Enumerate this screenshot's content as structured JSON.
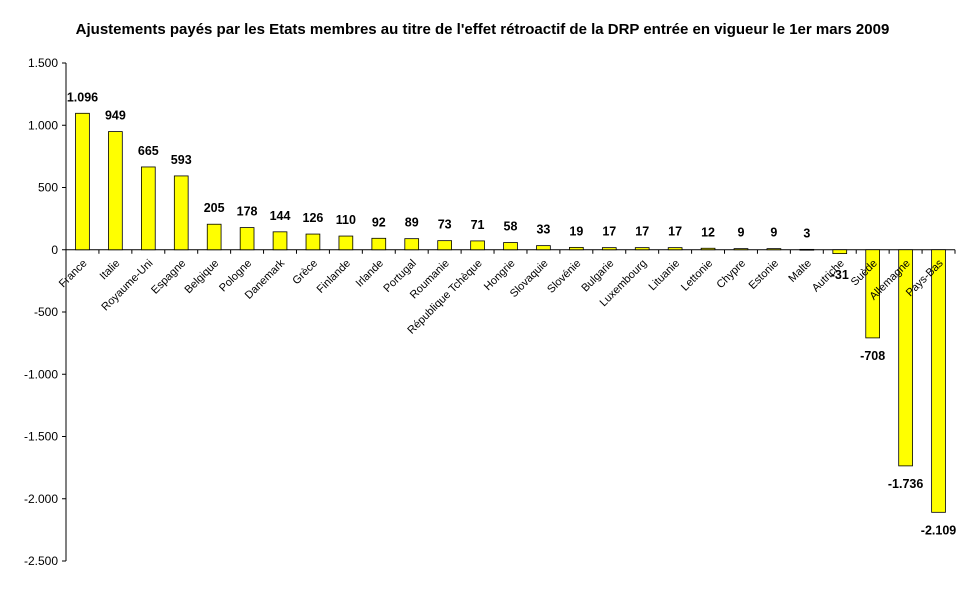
{
  "chart_data": {
    "type": "bar",
    "title": "Ajustements payés par les Etats membres au titre de l'effet rétroactif de la DRP entrée en vigueur le 1er mars 2009",
    "xlabel": "",
    "ylabel": "",
    "ylim": [
      -2500,
      1500
    ],
    "yticks": [
      1500,
      1000,
      500,
      0,
      -500,
      -1000,
      -1500,
      -2000,
      -2500
    ],
    "ytick_labels": [
      "1.500",
      "1.000",
      "500",
      "0",
      "-500",
      "-1.000",
      "-1.500",
      "-2.000",
      "-2.500"
    ],
    "grid": false,
    "legend": "none",
    "bar_color": "#ffff00",
    "bar_edge_color": "#000000",
    "categories": [
      "France",
      "Italie",
      "Royaume-Uni",
      "Espagne",
      "Belgique",
      "Pologne",
      "Danemark",
      "Grèce",
      "Finlande",
      "Irlande",
      "Portugal",
      "Roumanie",
      "République Tchèque",
      "Hongrie",
      "Slovaquie",
      "Slovénie",
      "Bulgarie",
      "Luxembourg",
      "Lituanie",
      "Lettonie",
      "Chypre",
      "Estonie",
      "Malte",
      "Autriche",
      "Suède",
      "Allemagne",
      "Pays-Bas"
    ],
    "values": [
      1096,
      949,
      665,
      593,
      205,
      178,
      144,
      126,
      110,
      92,
      89,
      73,
      71,
      58,
      33,
      19,
      17,
      17,
      17,
      12,
      9,
      9,
      3,
      -31,
      -708,
      -1736,
      -2109
    ],
    "data_labels": [
      "1.096",
      "949",
      "665",
      "593",
      "205",
      "178",
      "144",
      "126",
      "110",
      "92",
      "89",
      "73",
      "71",
      "58",
      "33",
      "19",
      "17",
      "17",
      "17",
      "12",
      "9",
      "9",
      "3",
      "-31",
      "-708",
      "-1.736",
      "-2.109"
    ]
  }
}
